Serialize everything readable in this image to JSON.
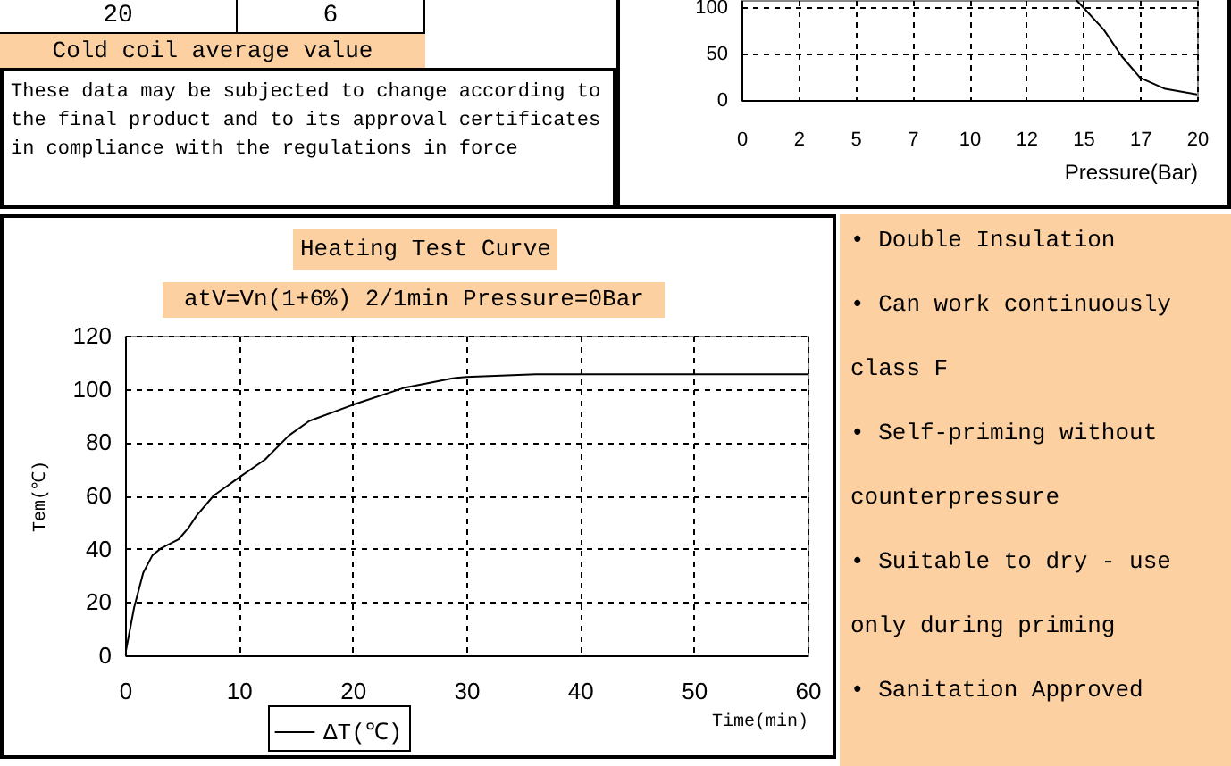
{
  "chart_data": [
    {
      "type": "other",
      "annotations": [
        "20",
        "6",
        "Cold coil average value",
        "These data may be subjected to change according to the final product and to its approval certificates in compliance with the regulations in force"
      ]
    },
    {
      "type": "line",
      "xlabel": "Pressure(Bar)",
      "xlim": [
        0,
        20
      ],
      "xticks": [
        0,
        {
          "value": 2.5,
          "label": "2"
        },
        5,
        {
          "value": 7.5,
          "label": "7"
        },
        10,
        {
          "value": 12.5,
          "label": "12"
        },
        15,
        {
          "value": 17.5,
          "label": "17"
        },
        20
      ],
      "ylim": [
        0,
        108
      ],
      "yticks": [
        0,
        50,
        100
      ],
      "grid": true,
      "series": [
        {
          "color": "#000000",
          "x": [
            14.7,
            15,
            15.9,
            16.7,
            17.5,
            18.6,
            20
          ],
          "values": [
            108,
            100,
            76,
            47,
            24,
            12,
            6
          ]
        }
      ]
    },
    {
      "type": "line",
      "title": "Heating Test Curve",
      "subtitle": "atV=Vn(1+6%) 2/1min Pressure=0Bar",
      "xlabel": "Time(min)",
      "ylabel": "Tem(℃)",
      "xlim": [
        0,
        60
      ],
      "xticks": [
        0,
        10,
        20,
        30,
        40,
        50,
        60
      ],
      "ylim": [
        0,
        120
      ],
      "yticks": [
        0,
        20,
        40,
        60,
        80,
        100,
        120
      ],
      "grid": true,
      "legend": "bottom",
      "series": [
        {
          "name": "ΔT(℃)",
          "color": "#000000",
          "x": [
            0,
            0.8,
            1.6,
            2.4,
            3.1,
            4.7,
            5.6,
            6.3,
            7.8,
            10.1,
            12.3,
            14.4,
            16.2,
            20,
            24.6,
            28.8,
            30,
            36.1,
            60
          ],
          "values": [
            0,
            18,
            31,
            37.5,
            40,
            43.5,
            48,
            52.5,
            60,
            67,
            73.5,
            82.5,
            88,
            94,
            100.5,
            104,
            104.5,
            105.5,
            105.5
          ]
        }
      ]
    },
    {
      "type": "other",
      "annotations": [
        "• Double Insulation",
        "• Can work continuously",
        "class F",
        "• Self-priming without",
        "counterpressure",
        "• Suitable to dry - use",
        "only during priming",
        "• Sanitation Approved"
      ]
    }
  ]
}
